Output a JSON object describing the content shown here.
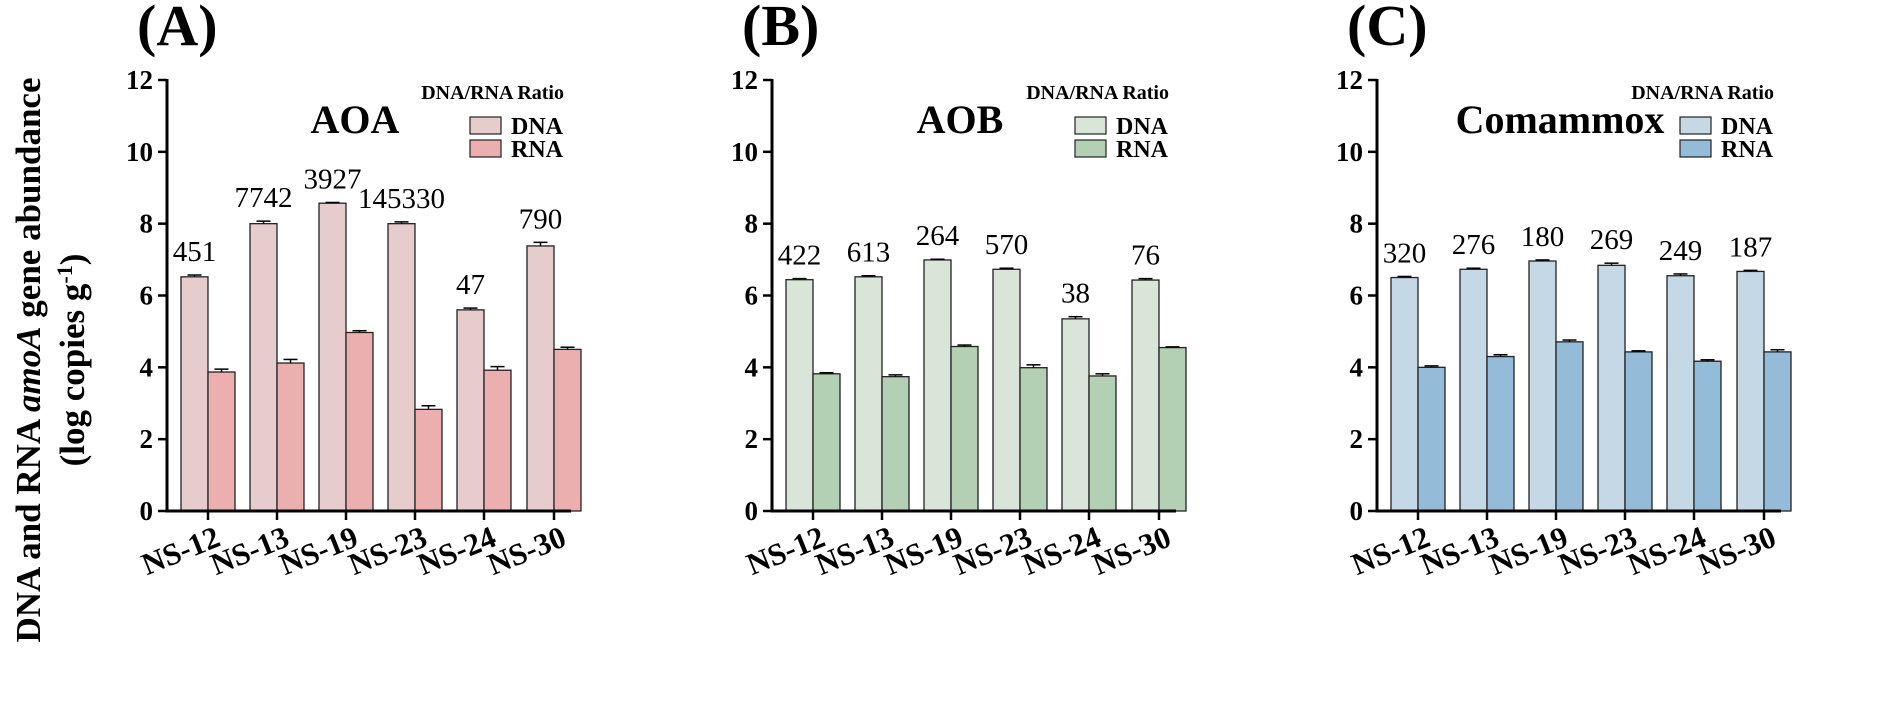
{
  "figure": {
    "ylabel_line1_a": "DNA and RNA ",
    "ylabel_line1_b": "amoA",
    "ylabel_line1_c": " gene abundance",
    "ylabel_line2_a": "(log copies g",
    "ylabel_line2_b": "-1",
    "ylabel_line2_c": ")"
  },
  "chart_data": [
    {
      "type": "bar",
      "panel_label": "(A)",
      "title": "AOA",
      "legend_title": "DNA/RNA  Ratio",
      "categories": [
        "NS-12",
        "NS-13",
        "NS-19",
        "NS-23",
        "NS-24",
        "NS-30"
      ],
      "series": [
        {
          "name": "DNA",
          "color": "#E6CCCC",
          "values": [
            6.52,
            8.0,
            8.57,
            8.0,
            5.6,
            7.38
          ],
          "errors": [
            0.05,
            0.07,
            0.02,
            0.05,
            0.05,
            0.1
          ]
        },
        {
          "name": "RNA",
          "color": "#EBAFAF",
          "values": [
            3.87,
            4.12,
            4.97,
            2.83,
            3.92,
            4.5
          ],
          "errors": [
            0.08,
            0.1,
            0.05,
            0.1,
            0.1,
            0.06
          ]
        }
      ],
      "ratio_labels": [
        "451",
        "7742",
        "3927",
        "145330",
        "47",
        "790"
      ],
      "ylim": [
        0,
        12
      ],
      "yticks": [
        0,
        2,
        4,
        6,
        8,
        10,
        12
      ],
      "ytick_labels": [
        "0",
        "2",
        "4",
        "6",
        "8",
        "10",
        "12"
      ]
    },
    {
      "type": "bar",
      "panel_label": "(B)",
      "title": "AOB",
      "legend_title": "DNA/RNA  Ratio",
      "categories": [
        "NS-12",
        "NS-13",
        "NS-19",
        "NS-23",
        "NS-24",
        "NS-30"
      ],
      "series": [
        {
          "name": "DNA",
          "color": "#D9E5D8",
          "values": [
            6.44,
            6.52,
            6.99,
            6.73,
            5.35,
            6.43
          ],
          "errors": [
            0.03,
            0.03,
            0.02,
            0.03,
            0.06,
            0.04
          ]
        },
        {
          "name": "RNA",
          "color": "#B3CFB4",
          "values": [
            3.82,
            3.74,
            4.58,
            3.99,
            3.76,
            4.55
          ],
          "errors": [
            0.03,
            0.05,
            0.04,
            0.08,
            0.06,
            0.02
          ]
        }
      ],
      "ratio_labels": [
        "422",
        "613",
        "264",
        "570",
        "38",
        "76"
      ],
      "ylim": [
        0,
        12
      ],
      "yticks": [
        0,
        2,
        4,
        6,
        8,
        10,
        12
      ],
      "ytick_labels": [
        "0",
        "2",
        "4",
        "6",
        "8",
        "10",
        "12"
      ]
    },
    {
      "type": "bar",
      "panel_label": "(C)",
      "title": "Comammox",
      "legend_title": "DNA/RNA  Ratio",
      "categories": [
        "NS-12",
        "NS-13",
        "NS-19",
        "NS-23",
        "NS-24",
        "NS-30"
      ],
      "series": [
        {
          "name": "DNA",
          "color": "#C5D8E6",
          "values": [
            6.5,
            6.73,
            6.96,
            6.84,
            6.55,
            6.67
          ],
          "errors": [
            0.03,
            0.03,
            0.03,
            0.06,
            0.05,
            0.03
          ]
        },
        {
          "name": "RNA",
          "color": "#94BBD8",
          "values": [
            4.0,
            4.3,
            4.71,
            4.43,
            4.17,
            4.43
          ],
          "errors": [
            0.04,
            0.05,
            0.05,
            0.03,
            0.04,
            0.06
          ]
        }
      ],
      "ratio_labels": [
        "320",
        "276",
        "180",
        "269",
        "249",
        "187"
      ],
      "ylim": [
        0,
        12
      ],
      "yticks": [
        0,
        2,
        4,
        6,
        8,
        10,
        12
      ],
      "ytick_labels": [
        "0",
        "2",
        "4",
        "6",
        "8",
        "10",
        "12"
      ]
    }
  ]
}
